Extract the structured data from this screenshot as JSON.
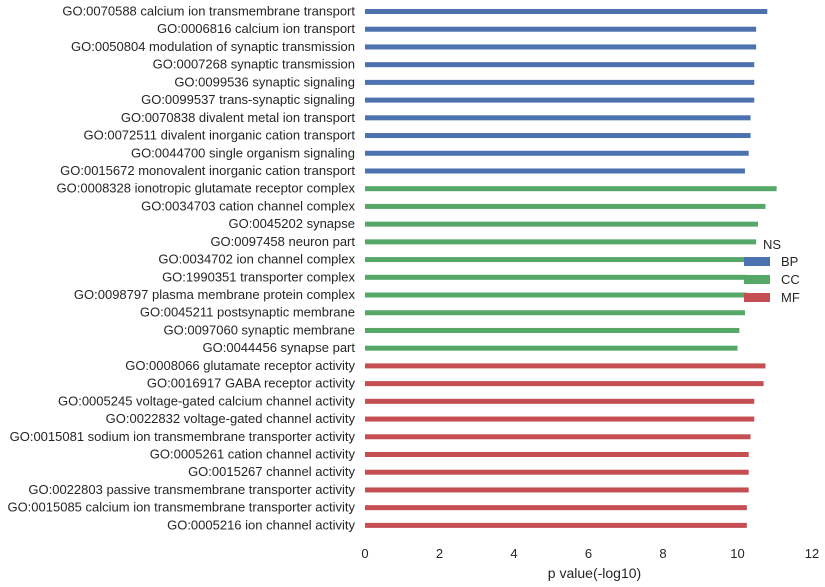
{
  "chart_data": {
    "type": "bar",
    "orientation": "horizontal",
    "xlabel": "p value(-log10)",
    "xlim": [
      0,
      12
    ],
    "xticks": [
      0,
      2,
      4,
      6,
      8,
      10,
      12
    ],
    "grid": false,
    "legend": {
      "title": "NS",
      "placement": "right",
      "entries": [
        {
          "name": "BP",
          "color": "#4c72b0"
        },
        {
          "name": "CC",
          "color": "#55a868"
        },
        {
          "name": "MF",
          "color": "#c44e52"
        }
      ]
    },
    "categories": [
      "GO:0070588 calcium ion transmembrane transport",
      "GO:0006816 calcium ion transport",
      "GO:0050804 modulation of synaptic transmission",
      "GO:0007268 synaptic transmission",
      "GO:0099536 synaptic signaling",
      "GO:0099537 trans-synaptic signaling",
      "GO:0070838 divalent metal ion transport",
      "GO:0072511 divalent inorganic cation transport",
      "GO:0044700 single organism signaling",
      "GO:0015672 monovalent inorganic cation transport",
      "GO:0008328 ionotropic glutamate receptor complex",
      "GO:0034703 cation channel complex",
      "GO:0045202 synapse",
      "GO:0097458 neuron part",
      "GO:0034702 ion channel complex",
      "GO:1990351 transporter complex",
      "GO:0098797 plasma membrane protein complex",
      "GO:0045211 postsynaptic membrane",
      "GO:0097060 synaptic membrane",
      "GO:0044456 synapse part",
      "GO:0008066 glutamate receptor activity",
      "GO:0016917 GABA receptor activity",
      "GO:0005245 voltage-gated calcium channel activity",
      "GO:0022832 voltage-gated channel activity",
      "GO:0015081 sodium ion transmembrane transporter activity",
      "GO:0005261 cation channel activity",
      "GO:0015267 channel activity",
      "GO:0022803 passive transmembrane transporter activity",
      "GO:0015085 calcium ion transmembrane transporter activity",
      "GO:0005216 ion channel activity"
    ],
    "values": [
      10.8,
      10.5,
      10.5,
      10.45,
      10.45,
      10.45,
      10.35,
      10.35,
      10.3,
      10.2,
      11.05,
      10.75,
      10.55,
      10.5,
      10.3,
      10.25,
      10.25,
      10.2,
      10.05,
      10.0,
      10.75,
      10.7,
      10.45,
      10.45,
      10.35,
      10.3,
      10.3,
      10.3,
      10.25,
      10.25
    ],
    "groups": [
      "BP",
      "BP",
      "BP",
      "BP",
      "BP",
      "BP",
      "BP",
      "BP",
      "BP",
      "BP",
      "CC",
      "CC",
      "CC",
      "CC",
      "CC",
      "CC",
      "CC",
      "CC",
      "CC",
      "CC",
      "MF",
      "MF",
      "MF",
      "MF",
      "MF",
      "MF",
      "MF",
      "MF",
      "MF",
      "MF"
    ]
  }
}
